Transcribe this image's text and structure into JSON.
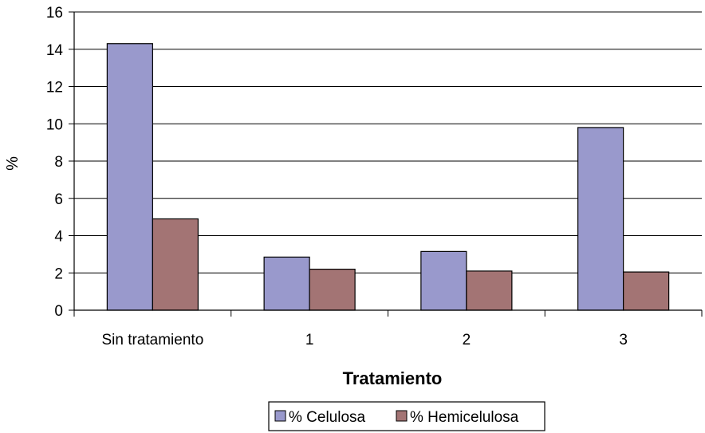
{
  "chart_data": {
    "type": "bar",
    "categories": [
      "Sin tratamiento",
      "1",
      "2",
      "3"
    ],
    "series": [
      {
        "name": "% Celulosa",
        "values": [
          14.3,
          2.85,
          3.15,
          9.8
        ],
        "color": "#9999CC"
      },
      {
        "name": "% Hemicelulosa",
        "values": [
          4.9,
          2.2,
          2.1,
          2.05
        ],
        "color": "#A37474"
      }
    ],
    "title": "",
    "xlabel": "Tratamiento",
    "ylabel": "%",
    "ylim": [
      0,
      16
    ],
    "yticks": [
      0,
      2,
      4,
      6,
      8,
      10,
      12,
      14,
      16
    ],
    "grid": true,
    "legend": "bottom"
  }
}
